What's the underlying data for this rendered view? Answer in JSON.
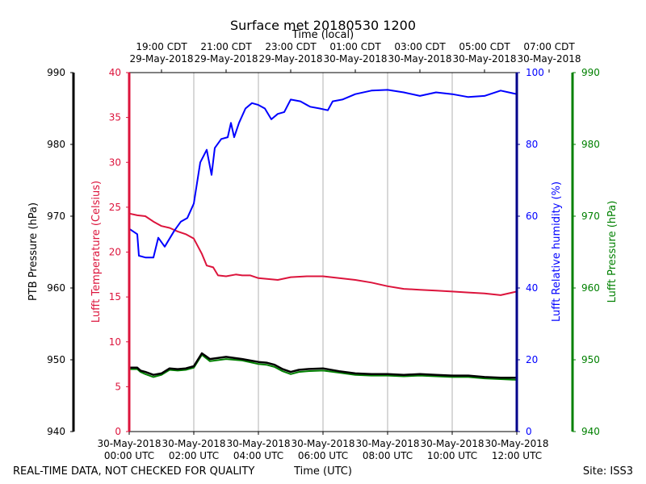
{
  "chart_data": {
    "type": "line",
    "title": "Surface met 20180530 1200",
    "top_axis": {
      "label": "Time (local)",
      "ticks": [
        {
          "line1": "19:00 CDT",
          "line2": "29-May-2018"
        },
        {
          "line1": "21:00 CDT",
          "line2": "29-May-2018"
        },
        {
          "line1": "23:00 CDT",
          "line2": "29-May-2018"
        },
        {
          "line1": "01:00 CDT",
          "line2": "30-May-2018"
        },
        {
          "line1": "03:00 CDT",
          "line2": "30-May-2018"
        },
        {
          "line1": "05:00 CDT",
          "line2": "30-May-2018"
        },
        {
          "line1": "07:00 CDT",
          "line2": "30-May-2018"
        }
      ]
    },
    "bottom_axis": {
      "label": "Time (UTC)",
      "xlim": [
        0,
        12
      ],
      "ticks": [
        {
          "line1": "30-May-2018",
          "line2": "00:00 UTC"
        },
        {
          "line1": "30-May-2018",
          "line2": "02:00 UTC"
        },
        {
          "line1": "30-May-2018",
          "line2": "04:00 UTC"
        },
        {
          "line1": "30-May-2018",
          "line2": "06:00 UTC"
        },
        {
          "line1": "30-May-2018",
          "line2": "08:00 UTC"
        },
        {
          "line1": "30-May-2018",
          "line2": "10:00 UTC"
        },
        {
          "line1": "30-May-2018",
          "line2": "12:00 UTC"
        }
      ]
    },
    "axes": {
      "ptb_pressure": {
        "label": "PTB Pressure (hPa)",
        "ylim": [
          940,
          990
        ],
        "ticks": [
          "940",
          "950",
          "960",
          "970",
          "980",
          "990"
        ],
        "color": "#000000"
      },
      "temperature": {
        "label": "Lufft Temperature (Celsius)",
        "ylim": [
          0,
          40
        ],
        "ticks": [
          "0",
          "5",
          "10",
          "15",
          "20",
          "25",
          "30",
          "35",
          "40"
        ],
        "color": "#dc143c"
      },
      "humidity": {
        "label": "Lufft Relative humidity (%)",
        "ylim": [
          0,
          100
        ],
        "ticks": [
          "0",
          "20",
          "40",
          "60",
          "80",
          "100"
        ],
        "color": "#0000ff"
      },
      "lufft_pressure": {
        "label": "Lufft Pressure (hPa)",
        "ylim": [
          940,
          990
        ],
        "ticks": [
          "940",
          "950",
          "960",
          "970",
          "980",
          "990"
        ],
        "color": "#008000"
      }
    },
    "series": [
      {
        "name": "Lufft Temperature",
        "axis": "temperature",
        "color": "#dc143c",
        "points": [
          [
            0,
            24.3
          ],
          [
            0.25,
            24.1
          ],
          [
            0.5,
            24.0
          ],
          [
            0.75,
            23.4
          ],
          [
            1.0,
            22.9
          ],
          [
            1.25,
            22.7
          ],
          [
            1.5,
            22.3
          ],
          [
            1.75,
            22.0
          ],
          [
            2.0,
            21.5
          ],
          [
            2.25,
            19.8
          ],
          [
            2.4,
            18.5
          ],
          [
            2.6,
            18.3
          ],
          [
            2.75,
            17.4
          ],
          [
            3.0,
            17.3
          ],
          [
            3.3,
            17.5
          ],
          [
            3.5,
            17.4
          ],
          [
            3.75,
            17.4
          ],
          [
            4.0,
            17.1
          ],
          [
            4.3,
            17.0
          ],
          [
            4.6,
            16.9
          ],
          [
            5.0,
            17.2
          ],
          [
            5.5,
            17.3
          ],
          [
            6.0,
            17.3
          ],
          [
            6.5,
            17.1
          ],
          [
            7.0,
            16.9
          ],
          [
            7.5,
            16.6
          ],
          [
            8.0,
            16.2
          ],
          [
            8.5,
            15.9
          ],
          [
            9.0,
            15.8
          ],
          [
            9.5,
            15.7
          ],
          [
            10.0,
            15.6
          ],
          [
            10.5,
            15.5
          ],
          [
            11.0,
            15.4
          ],
          [
            11.5,
            15.2
          ],
          [
            12.0,
            15.6
          ]
        ]
      },
      {
        "name": "Lufft Relative humidity",
        "axis": "humidity",
        "color": "#0000ff",
        "points": [
          [
            0,
            56.5
          ],
          [
            0.25,
            55.0
          ],
          [
            0.3,
            49.0
          ],
          [
            0.5,
            48.5
          ],
          [
            0.75,
            48.5
          ],
          [
            0.9,
            54.0
          ],
          [
            1.1,
            51.5
          ],
          [
            1.4,
            56.0
          ],
          [
            1.6,
            58.5
          ],
          [
            1.8,
            59.5
          ],
          [
            2.0,
            63.5
          ],
          [
            2.2,
            75.0
          ],
          [
            2.4,
            78.5
          ],
          [
            2.55,
            71.5
          ],
          [
            2.65,
            79.0
          ],
          [
            2.85,
            81.5
          ],
          [
            3.05,
            82.0
          ],
          [
            3.15,
            86.0
          ],
          [
            3.25,
            82.0
          ],
          [
            3.4,
            86.0
          ],
          [
            3.6,
            90.0
          ],
          [
            3.8,
            91.5
          ],
          [
            4.0,
            91.0
          ],
          [
            4.2,
            90.0
          ],
          [
            4.4,
            87.0
          ],
          [
            4.6,
            88.5
          ],
          [
            4.8,
            89.0
          ],
          [
            5.0,
            92.5
          ],
          [
            5.3,
            92.0
          ],
          [
            5.6,
            90.5
          ],
          [
            5.9,
            90.0
          ],
          [
            6.15,
            89.5
          ],
          [
            6.3,
            92.0
          ],
          [
            6.6,
            92.5
          ],
          [
            7.0,
            94.0
          ],
          [
            7.5,
            95.0
          ],
          [
            8.0,
            95.2
          ],
          [
            8.5,
            94.5
          ],
          [
            9.0,
            93.5
          ],
          [
            9.5,
            94.5
          ],
          [
            10.0,
            94.0
          ],
          [
            10.5,
            93.2
          ],
          [
            11.0,
            93.5
          ],
          [
            11.5,
            95.0
          ],
          [
            12.0,
            94.0
          ]
        ]
      },
      {
        "name": "Lufft Pressure",
        "axis": "lufft_pressure",
        "color": "#008000",
        "points": [
          [
            0,
            948.7
          ],
          [
            0.25,
            948.7
          ],
          [
            0.35,
            948.3
          ],
          [
            0.5,
            948.0
          ],
          [
            0.75,
            947.6
          ],
          [
            1.0,
            947.9
          ],
          [
            1.25,
            948.6
          ],
          [
            1.5,
            948.5
          ],
          [
            1.75,
            948.6
          ],
          [
            2.0,
            948.9
          ],
          [
            2.25,
            950.7
          ],
          [
            2.5,
            949.8
          ],
          [
            3.0,
            950.1
          ],
          [
            3.5,
            949.9
          ],
          [
            4.0,
            949.4
          ],
          [
            4.25,
            949.3
          ],
          [
            4.5,
            949.0
          ],
          [
            4.75,
            948.4
          ],
          [
            5.0,
            948.0
          ],
          [
            5.25,
            948.3
          ],
          [
            5.5,
            948.4
          ],
          [
            6.0,
            948.5
          ],
          [
            6.5,
            948.2
          ],
          [
            7.0,
            947.9
          ],
          [
            7.5,
            947.8
          ],
          [
            8.0,
            947.8
          ],
          [
            8.5,
            947.7
          ],
          [
            9.0,
            947.8
          ],
          [
            9.5,
            947.7
          ],
          [
            10.0,
            947.6
          ],
          [
            10.5,
            947.6
          ],
          [
            11.0,
            947.4
          ],
          [
            11.5,
            947.3
          ],
          [
            12.0,
            947.2
          ]
        ]
      },
      {
        "name": "PTB Pressure",
        "axis": "ptb_pressure",
        "color": "#000000",
        "points": [
          [
            0,
            948.9
          ],
          [
            0.25,
            948.9
          ],
          [
            0.35,
            948.5
          ],
          [
            0.5,
            948.3
          ],
          [
            0.75,
            947.9
          ],
          [
            1.0,
            948.1
          ],
          [
            1.25,
            948.8
          ],
          [
            1.5,
            948.7
          ],
          [
            1.75,
            948.8
          ],
          [
            2.0,
            949.1
          ],
          [
            2.25,
            950.9
          ],
          [
            2.5,
            950.1
          ],
          [
            3.0,
            950.4
          ],
          [
            3.5,
            950.1
          ],
          [
            4.0,
            949.7
          ],
          [
            4.25,
            949.6
          ],
          [
            4.5,
            949.3
          ],
          [
            4.75,
            948.7
          ],
          [
            5.0,
            948.3
          ],
          [
            5.25,
            948.6
          ],
          [
            5.5,
            948.7
          ],
          [
            6.0,
            948.8
          ],
          [
            6.5,
            948.4
          ],
          [
            7.0,
            948.1
          ],
          [
            7.5,
            948.0
          ],
          [
            8.0,
            948.0
          ],
          [
            8.5,
            947.9
          ],
          [
            9.0,
            948.0
          ],
          [
            9.5,
            947.9
          ],
          [
            10.0,
            947.8
          ],
          [
            10.5,
            947.8
          ],
          [
            11.0,
            947.6
          ],
          [
            11.5,
            947.5
          ],
          [
            12.0,
            947.5
          ]
        ]
      }
    ],
    "grid": "vertical",
    "footer": {
      "left": "REAL-TIME DATA, NOT CHECKED FOR QUALITY",
      "right": "Site: ISS3"
    }
  }
}
